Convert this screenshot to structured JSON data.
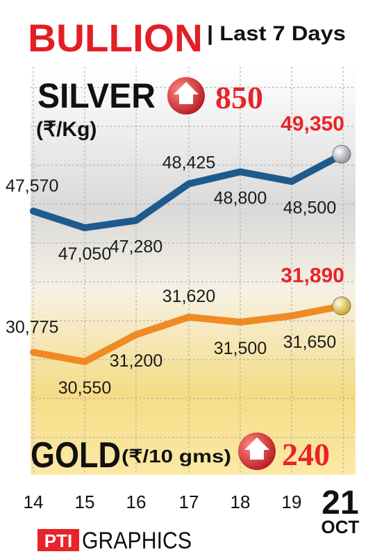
{
  "header": {
    "title": "BULLION",
    "subtitle": "| Last 7 Days"
  },
  "chart_data": [
    {
      "type": "line",
      "title": "SILVER",
      "unit": "(₹/Kg)",
      "change_label": "850",
      "change_direction": "up",
      "x": [
        "14",
        "15",
        "16",
        "17",
        "18",
        "19",
        "21"
      ],
      "series": [
        {
          "values": [
            47570,
            47050,
            47280,
            48425,
            48800,
            48500,
            49350
          ],
          "labels": [
            "47,570",
            "47,050",
            "47,280",
            "48,425",
            "48,800",
            "48,500",
            "49,350"
          ]
        }
      ],
      "ylim": [
        46400,
        49700
      ],
      "grid": true
    },
    {
      "type": "line",
      "title": "GOLD",
      "unit": "(₹/10 gms)",
      "change_label": "240",
      "change_direction": "up",
      "x": [
        "14",
        "15",
        "16",
        "17",
        "18",
        "19",
        "21"
      ],
      "series": [
        {
          "values": [
            30775,
            30550,
            31200,
            31620,
            31500,
            31650,
            31890
          ],
          "labels": [
            "30,775",
            "30,550",
            "31,200",
            "31,620",
            "31,500",
            "31,650",
            "31,890"
          ]
        }
      ],
      "ylim": [
        29900,
        32400
      ],
      "grid": true
    }
  ],
  "x_axis": {
    "labels": [
      "14",
      "15",
      "16",
      "17",
      "18",
      "19",
      "21"
    ],
    "month": "OCT"
  },
  "footer": {
    "logo_text": "PTI",
    "credit": "GRAPHICS"
  },
  "colors": {
    "silver_line": "#1f5a8c",
    "gold_line": "#f08a24",
    "highlight_red": "#e8232a",
    "title_red": "#e21f26"
  }
}
